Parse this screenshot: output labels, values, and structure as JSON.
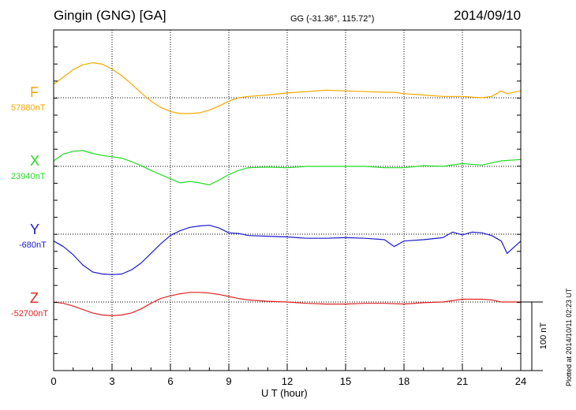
{
  "header": {
    "station": "Gingin (GNG)  [GA]",
    "coords": "GG (-31.36°, 115.72°)",
    "date": "2014/09/10"
  },
  "plotted_note": "Plotted at 2014/10/11 02:23 UT",
  "chart_data": {
    "type": "line",
    "title": "Gingin (GNG)  [GA]",
    "xlabel": "U T (hour)",
    "xlim": [
      0,
      24
    ],
    "xticks": [
      "0",
      "3",
      "6",
      "9",
      "12",
      "15",
      "18",
      "21",
      "24"
    ],
    "scale_bar_label": "100 nT",
    "scale_bar_nT": 100,
    "series": [
      {
        "name": "F",
        "baseline_label": "57880nT",
        "baseline_nT": 57880,
        "color": "#f5a800",
        "x": [
          0,
          0.5,
          1,
          1.5,
          2,
          2.5,
          3,
          3.5,
          4,
          4.5,
          5,
          5.5,
          6,
          6.5,
          7,
          7.5,
          8,
          8.5,
          9,
          9.5,
          10,
          11,
          12,
          13,
          14,
          15,
          16,
          17,
          17.5,
          18,
          19,
          20,
          21,
          22,
          22.5,
          23,
          23.3,
          24
        ],
        "y": [
          20,
          30,
          41,
          48,
          51,
          49,
          42,
          32,
          20,
          7,
          -5,
          -14,
          -20,
          -23,
          -23,
          -22,
          -18,
          -12,
          -5,
          0,
          2,
          4,
          7,
          9,
          11,
          10,
          9,
          8,
          8,
          6,
          4,
          2,
          2,
          0,
          2,
          10,
          6,
          10
        ]
      },
      {
        "name": "X",
        "baseline_label": "23940nT",
        "baseline_nT": 23940,
        "color": "#22dd22",
        "x": [
          0,
          0.5,
          1,
          1.5,
          2,
          2.5,
          3,
          3.5,
          4,
          4.5,
          5,
          5.5,
          6,
          6.5,
          7,
          7.5,
          8,
          8.5,
          9,
          9.5,
          10,
          11,
          12,
          13,
          14,
          15,
          16,
          17,
          18,
          19,
          20,
          21,
          22,
          23,
          24
        ],
        "y": [
          8,
          18,
          22,
          23,
          19,
          16,
          14,
          12,
          7,
          1,
          -6,
          -12,
          -18,
          -24,
          -22,
          -24,
          -27,
          -20,
          -12,
          -6,
          -2,
          -1,
          -2,
          0,
          0,
          0,
          0,
          -2,
          -2,
          1,
          0,
          4,
          2,
          8,
          10
        ]
      },
      {
        "name": "Y",
        "baseline_label": "-680nT",
        "baseline_nT": -680,
        "color": "#1a1acc",
        "x": [
          0,
          0.5,
          0.8,
          1,
          1.5,
          2,
          2.5,
          3,
          3.5,
          4,
          4.5,
          5,
          5.5,
          6,
          6.5,
          7,
          7.5,
          8,
          8.5,
          9,
          9.5,
          10,
          11,
          12,
          13,
          14,
          15,
          16,
          17,
          17.5,
          18,
          19,
          20,
          20.5,
          21,
          21.5,
          22,
          22.5,
          23,
          23.3,
          24
        ],
        "y": [
          -10,
          -18,
          -25,
          -30,
          -45,
          -55,
          -58,
          -59,
          -58,
          -52,
          -42,
          -28,
          -14,
          -2,
          5,
          10,
          12,
          13,
          9,
          2,
          1,
          -2,
          -3,
          -4,
          -6,
          -6,
          -5,
          -6,
          -8,
          -18,
          -10,
          -8,
          -5,
          3,
          -1,
          3,
          2,
          -2,
          -10,
          -28,
          -10
        ]
      },
      {
        "name": "Z",
        "baseline_label": "-52700nT",
        "baseline_nT": -52700,
        "color": "#dd2222",
        "x": [
          0,
          0.5,
          1,
          1.5,
          2,
          2.5,
          3,
          3.5,
          4,
          4.5,
          5,
          5.5,
          6,
          6.5,
          7,
          7.5,
          8,
          8.5,
          9,
          9.5,
          10,
          11,
          12,
          13,
          14,
          15,
          16,
          17,
          18,
          19,
          20,
          21,
          22,
          22.5,
          23,
          24
        ],
        "y": [
          0,
          -2,
          -6,
          -11,
          -16,
          -19,
          -20,
          -19,
          -16,
          -10,
          -2,
          5,
          9,
          12,
          14,
          14,
          13,
          11,
          8,
          5,
          3,
          1,
          0,
          -2,
          -3,
          -3,
          -2,
          -2,
          -3,
          -1,
          0,
          4,
          4,
          3,
          0,
          0
        ]
      }
    ]
  }
}
